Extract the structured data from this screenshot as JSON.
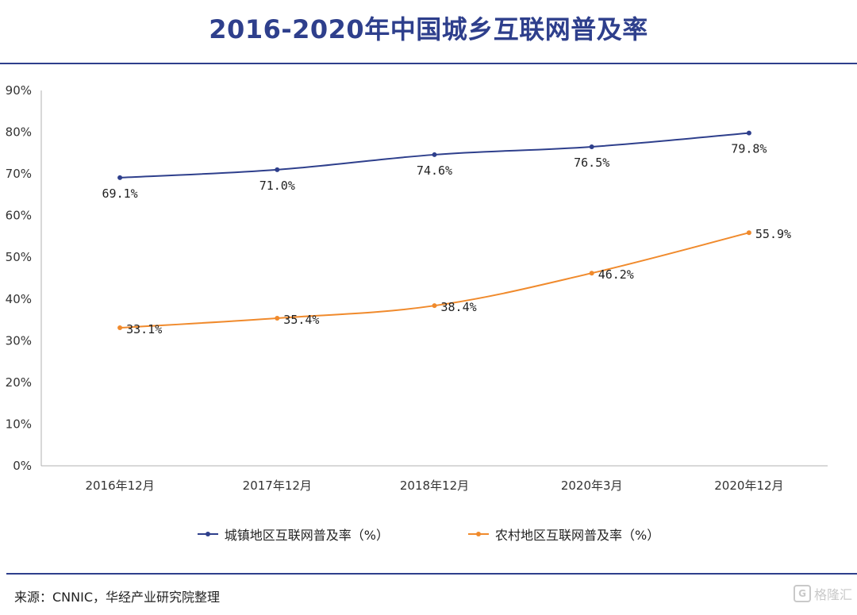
{
  "header": {
    "title": "2016-2020年中国城乡互联网普及率"
  },
  "footer": {
    "source": "来源：CNNIC，华经产业研究院整理",
    "watermark": "格隆汇",
    "watermark_icon": "G"
  },
  "colors": {
    "urban": "#2E3F8C",
    "rural": "#F08A2C",
    "axis": "#b0b0b0"
  },
  "chart_data": {
    "type": "line",
    "categories": [
      "2016年12月",
      "2017年12月",
      "2018年12月",
      "2020年3月",
      "2020年12月"
    ],
    "series": [
      {
        "name": "城镇地区互联网普及率（%）",
        "values": [
          69.1,
          71.0,
          74.6,
          76.5,
          79.8
        ],
        "labels": [
          "69.1%",
          "71.0%",
          "74.6%",
          "76.5%",
          "79.8%"
        ]
      },
      {
        "name": "农村地区互联网普及率（%）",
        "values": [
          33.1,
          35.4,
          38.4,
          46.2,
          55.9
        ],
        "labels": [
          "33.1%",
          "35.4%",
          "38.4%",
          "46.2%",
          "55.9%"
        ]
      }
    ],
    "yticks": [
      "0%",
      "10%",
      "20%",
      "30%",
      "40%",
      "50%",
      "60%",
      "70%",
      "80%",
      "90%"
    ],
    "ylim": [
      0,
      90
    ],
    "grid": false,
    "legend": "bottom"
  }
}
